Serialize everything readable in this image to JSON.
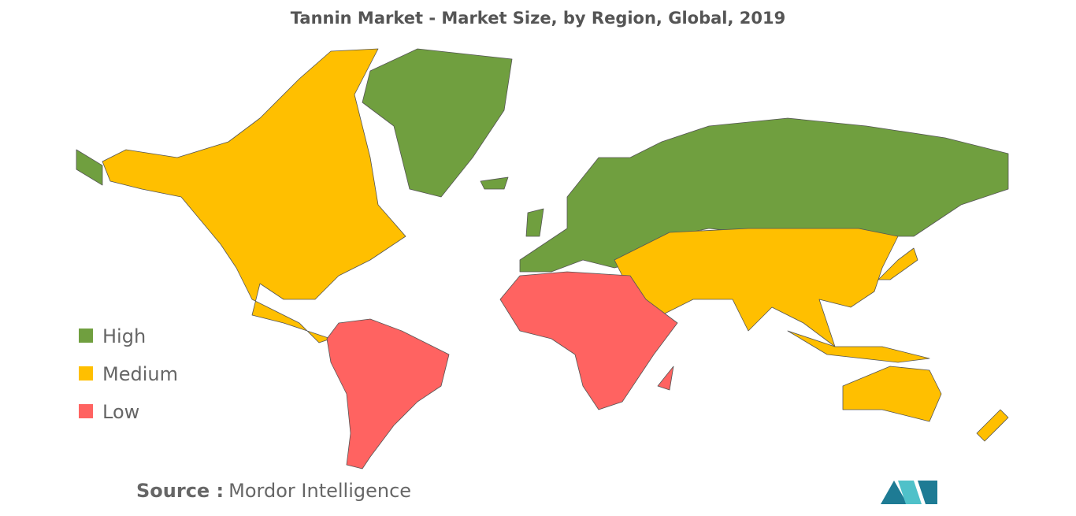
{
  "title": "Tannin Market - Market Size, by Region, Global, 2019",
  "legend": [
    {
      "name": "High",
      "color": "#709f3f"
    },
    {
      "name": "Medium",
      "color": "#ffbf00"
    },
    {
      "name": "Low",
      "color": "#ff6361"
    }
  ],
  "source": {
    "label": "Source :",
    "text": "Mordor Intelligence"
  }
}
